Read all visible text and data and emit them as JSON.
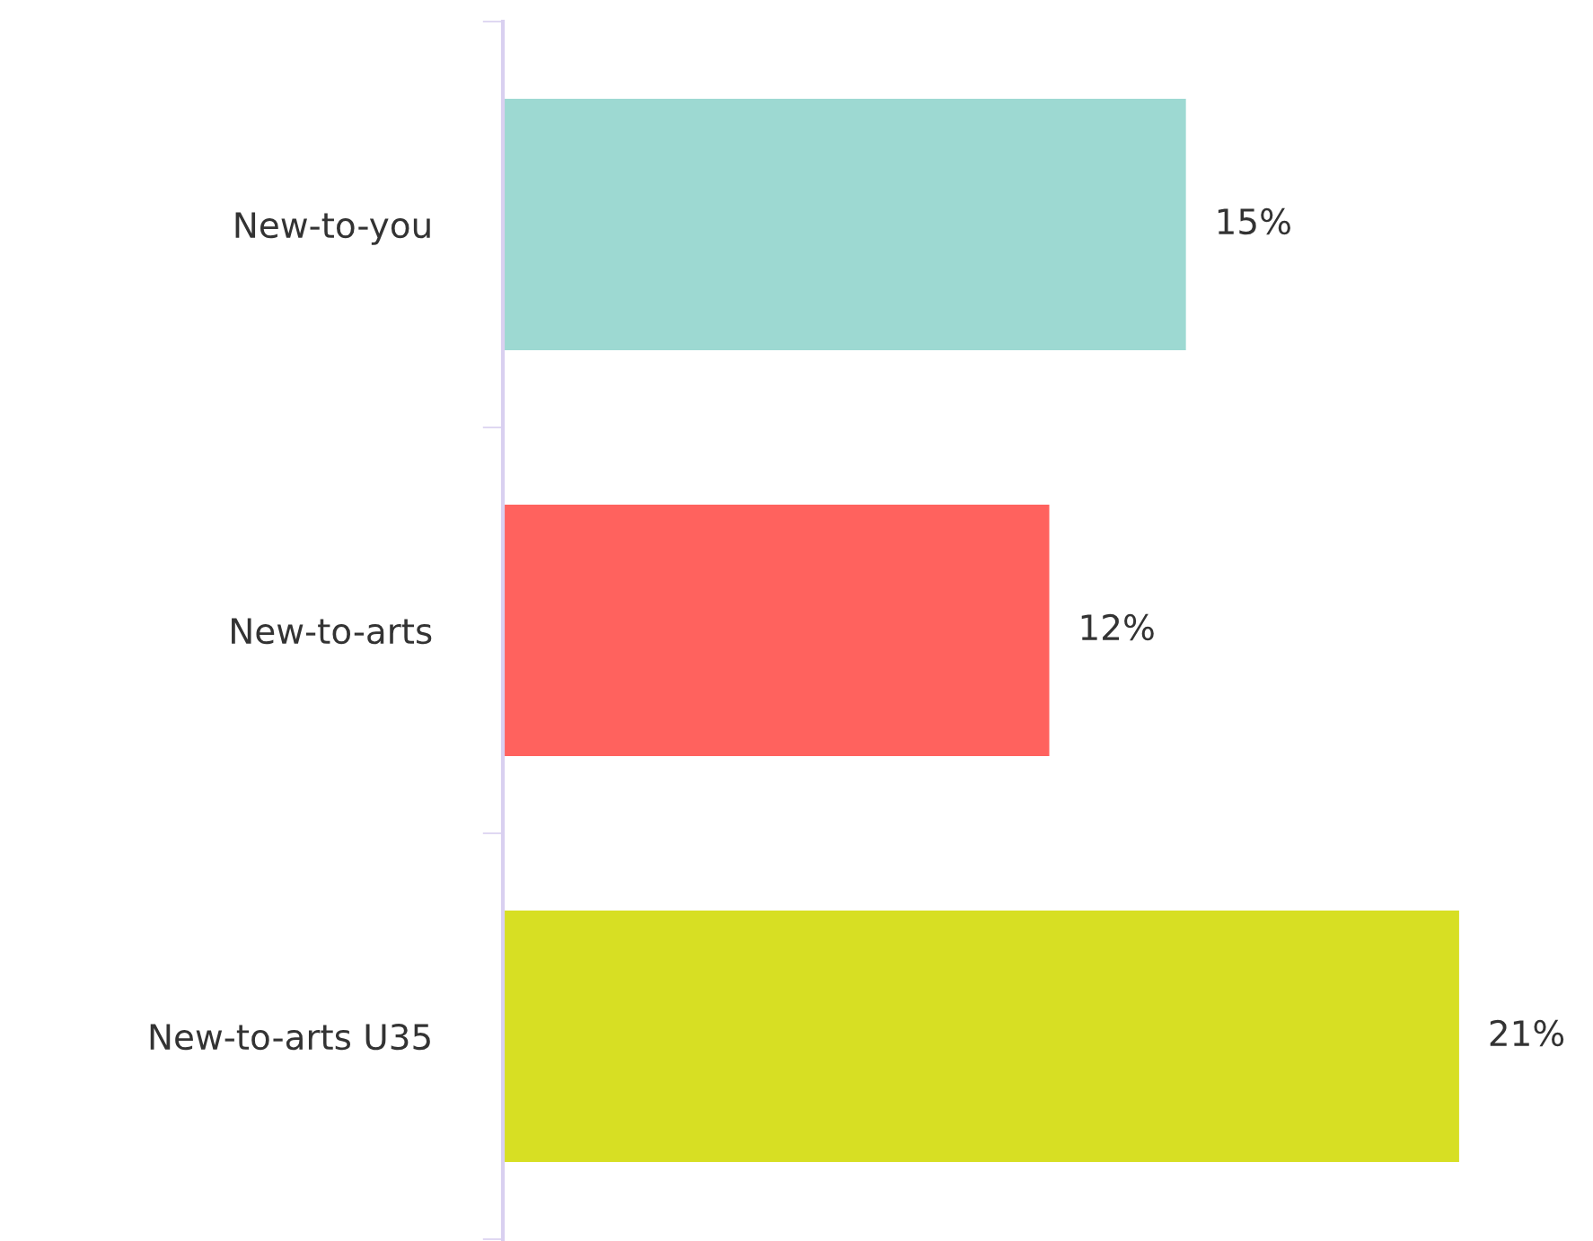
{
  "chart_data": {
    "type": "bar",
    "orientation": "horizontal",
    "categories": [
      "New-to-you",
      "New-to-arts",
      "New-to-arts U35"
    ],
    "values": [
      15,
      12,
      21
    ],
    "colors": [
      "#9dd9d2",
      "#ff625e",
      "#d7df23"
    ],
    "value_labels": [
      "15%",
      "12%",
      "21%"
    ],
    "grid": false,
    "legend": false,
    "tick_labels": "y"
  }
}
